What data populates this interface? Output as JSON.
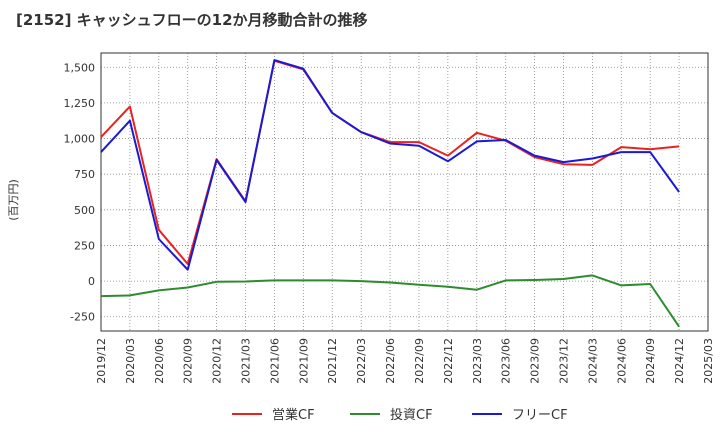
{
  "chart_data": {
    "type": "line",
    "title": "[2152]  キャッシュフローの12か月移動合計の推移",
    "xlabel": "",
    "ylabel": "(百万円)",
    "ylim": [
      -350,
      1600
    ],
    "yticks": [
      -250,
      0,
      250,
      500,
      750,
      "1,000",
      "1,250",
      "1,500"
    ],
    "ytick_values": [
      -250,
      0,
      250,
      500,
      750,
      1000,
      1250,
      1500
    ],
    "grid": true,
    "legend_position": "bottom",
    "categories": [
      "2019/12",
      "2020/03",
      "2020/06",
      "2020/09",
      "2020/12",
      "2021/03",
      "2021/06",
      "2021/09",
      "2021/12",
      "2022/03",
      "2022/06",
      "2022/09",
      "2022/12",
      "2023/03",
      "2023/06",
      "2023/09",
      "2023/12",
      "2024/03",
      "2024/06",
      "2024/09",
      "2024/12",
      "2025/03"
    ],
    "series": [
      {
        "name": "営業CF",
        "color": "#e8231f",
        "values": [
          1010,
          1225,
          360,
          120,
          855,
          560,
          1545,
          1485,
          1180,
          1045,
          975,
          975,
          880,
          1040,
          985,
          870,
          820,
          815,
          940,
          925,
          945,
          null
        ]
      },
      {
        "name": "投資CF",
        "color": "#2e8b2e",
        "values": [
          -105,
          -100,
          -65,
          -45,
          -5,
          -3,
          5,
          5,
          5,
          0,
          -10,
          -25,
          -40,
          -60,
          5,
          8,
          15,
          40,
          -30,
          -20,
          -320,
          null
        ]
      },
      {
        "name": "フリーCF",
        "color": "#1a1ad6",
        "values": [
          905,
          1125,
          295,
          80,
          850,
          555,
          1550,
          1490,
          1180,
          1045,
          965,
          950,
          840,
          980,
          990,
          880,
          835,
          860,
          905,
          905,
          625,
          null
        ]
      }
    ]
  }
}
